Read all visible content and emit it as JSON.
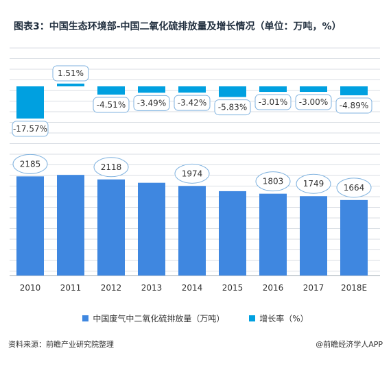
{
  "title": "图表3：中国生态环境部-中国二氧化硫排放量及增长情况（单位：万吨，%）",
  "source": "资料来源：前瞻产业研究院整理",
  "credit": "@前瞻经济学人APP",
  "colors": {
    "emission_bar": "#3f87e0",
    "growth_bar": "#00a0e0",
    "grid": "#d8dde3",
    "label_border": "#7fb2df",
    "text": "#333333"
  },
  "chart_data": {
    "type": "bar",
    "categories": [
      "2010",
      "2011",
      "2012",
      "2013",
      "2014",
      "2015",
      "2016",
      "2017",
      "2018E"
    ],
    "series": [
      {
        "name": "中国废气中二氧化硫排放量（万吨）",
        "values": [
          2185,
          2218,
          2118,
          2044,
          1974,
          1859,
          1803,
          1749,
          1664
        ],
        "labels": [
          "2185",
          "",
          "2118",
          "",
          "1974",
          "",
          "1803",
          "1749",
          "1664"
        ]
      },
      {
        "name": "增长率（%）",
        "values": [
          -17.57,
          1.51,
          -4.51,
          -3.49,
          -3.42,
          -5.83,
          -3.01,
          -3.0,
          -4.89
        ],
        "labels": [
          "-17.57%",
          "1.51%",
          "-4.51%",
          "-3.49%",
          "-3.42%",
          "-5.83%",
          "-3.01%",
          "-3.00%",
          "-4.89%"
        ]
      }
    ],
    "legend_position": "bottom",
    "grid": true
  }
}
